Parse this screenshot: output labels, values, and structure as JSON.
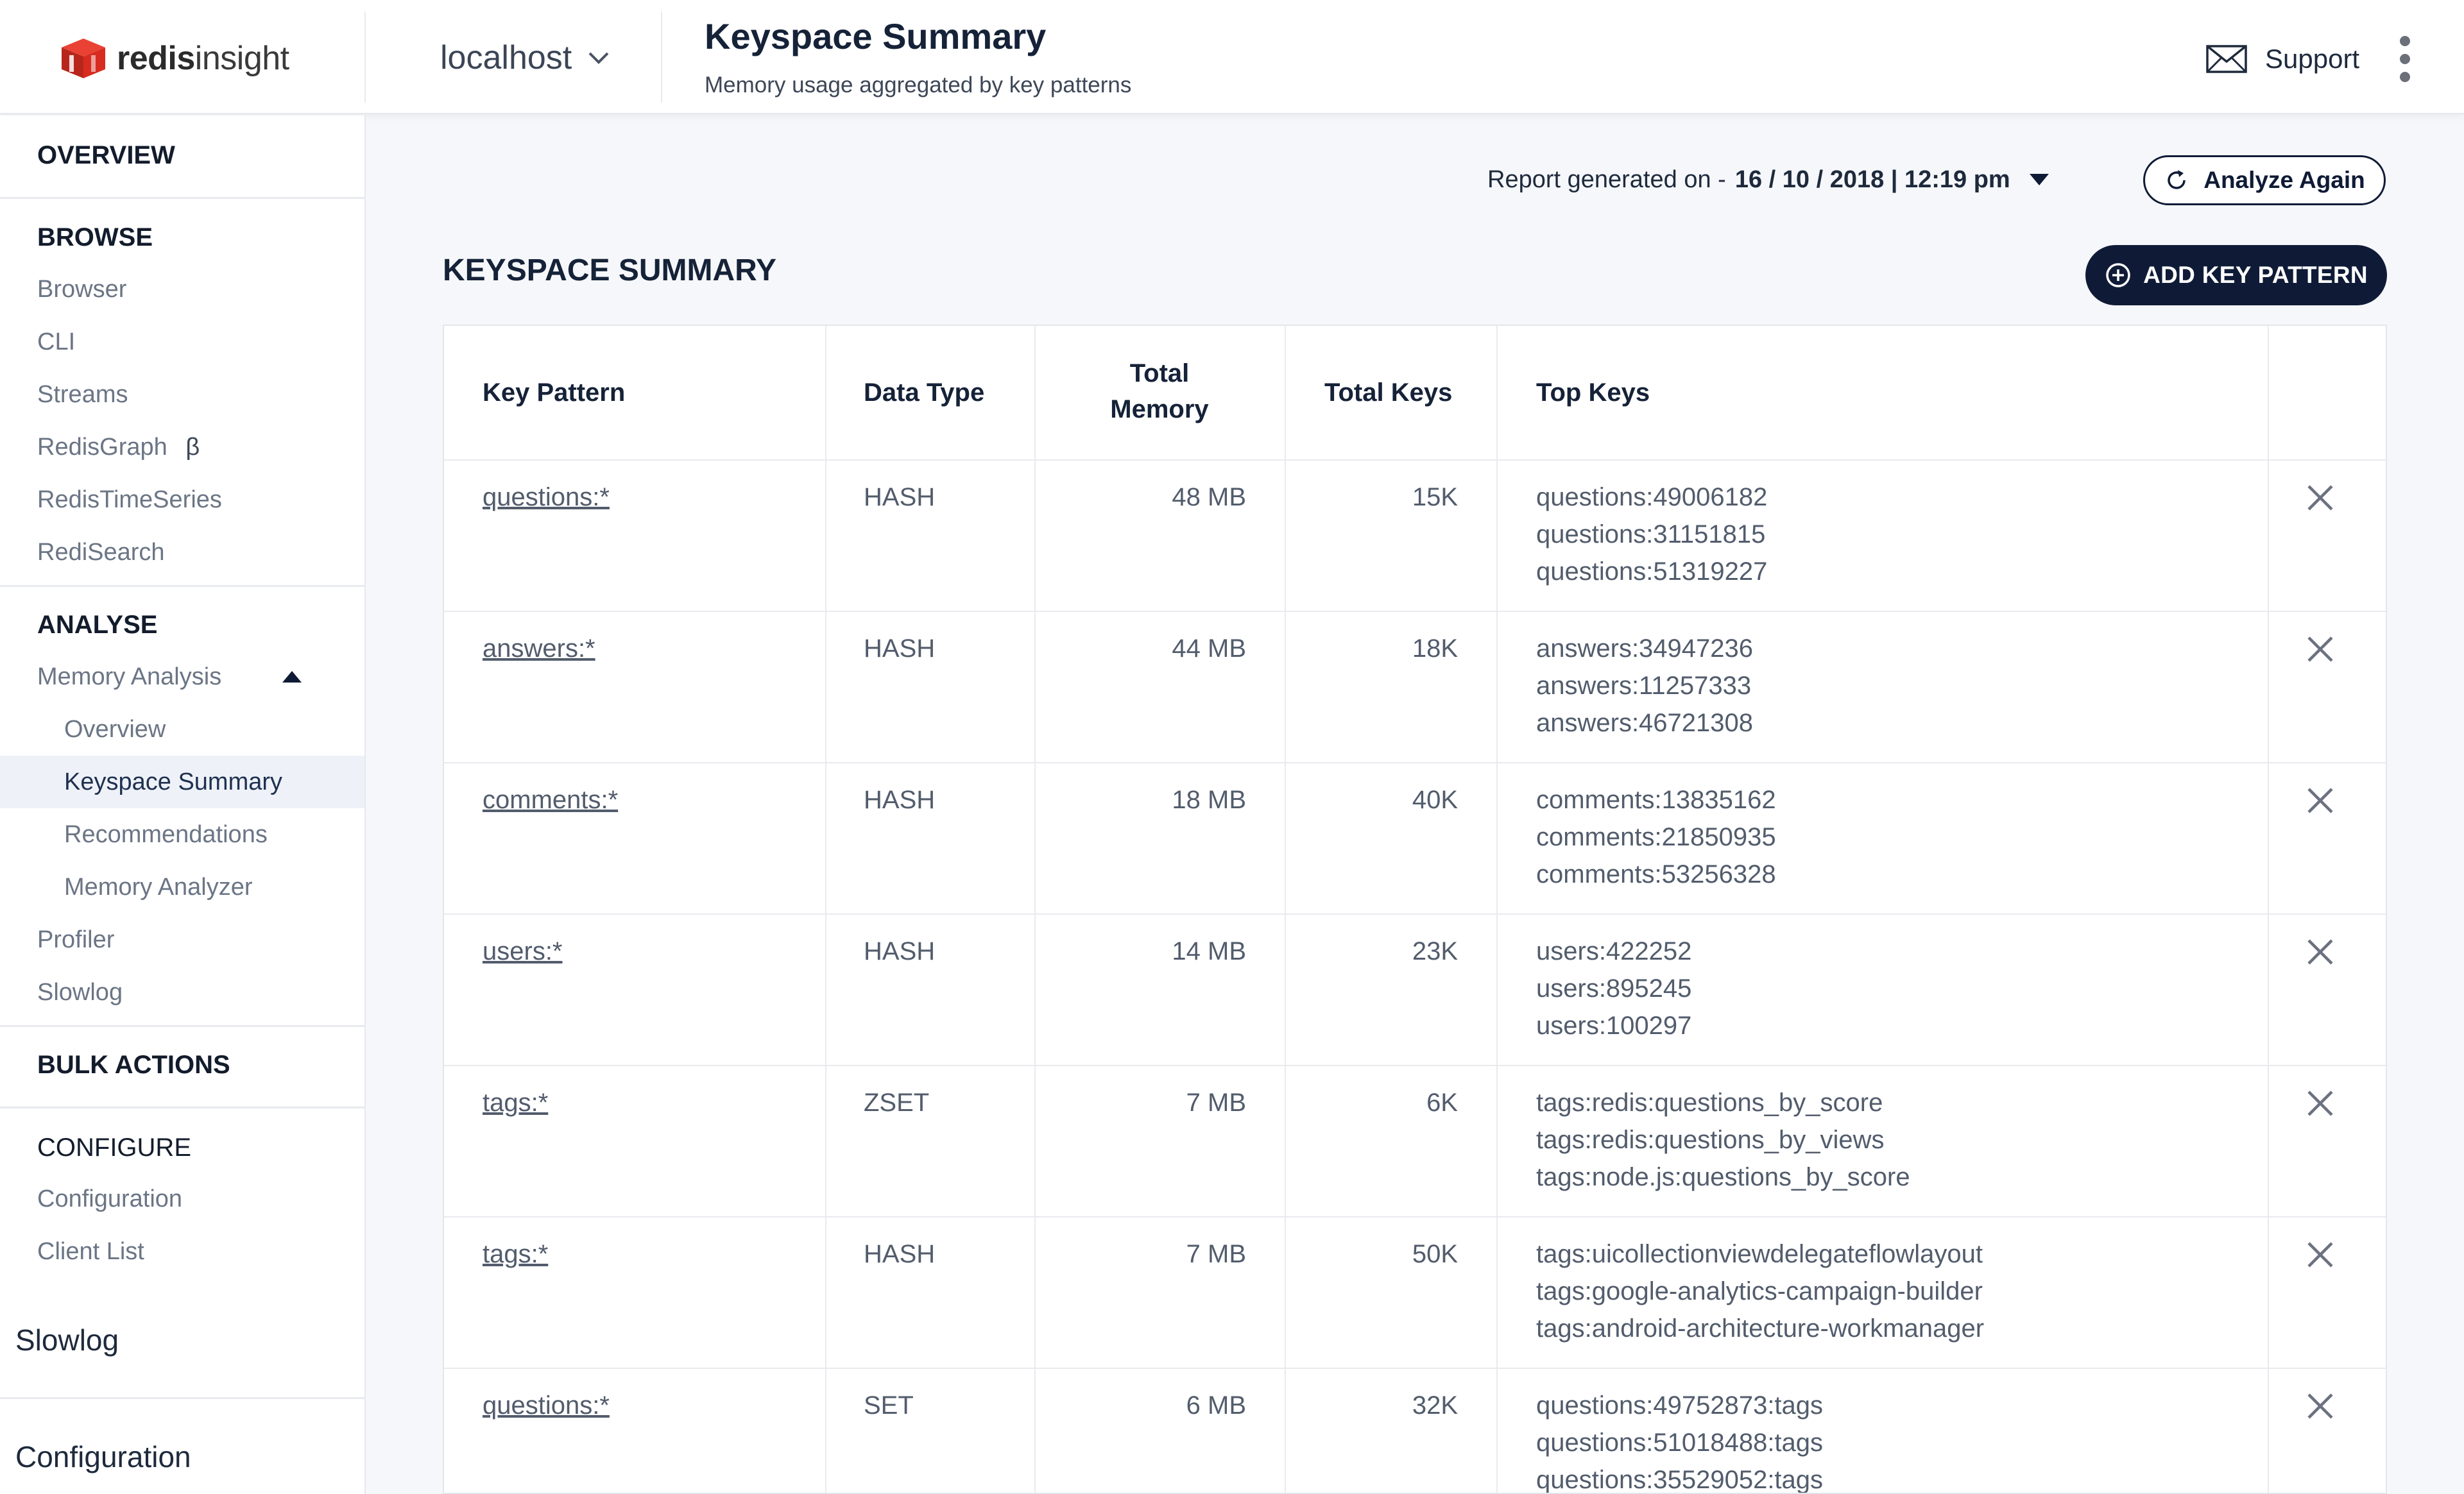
{
  "header": {
    "logo_bold": "redis",
    "logo_light": "insight",
    "db_name": "localhost",
    "title": "Keyspace Summary",
    "subtitle": "Memory usage aggregated by key patterns",
    "support_label": "Support"
  },
  "sidebar": {
    "overview": "OVERVIEW",
    "browse": "BROWSE",
    "browse_items": [
      "Browser",
      "CLI",
      "Streams",
      "RedisGraph",
      "RedisTimeSeries",
      "RediSearch"
    ],
    "beta_mark": "β",
    "analyse": "ANALYSE",
    "memory_analysis": "Memory Analysis",
    "memory_sub": [
      "Overview",
      "Keyspace Summary",
      "Recommendations",
      "Memory Analyzer"
    ],
    "analyse_items": [
      "Profiler",
      "Slowlog"
    ],
    "bulk_actions": "BULK ACTIONS",
    "configure": "CONFIGURE",
    "configure_items": [
      "Configuration",
      "Client List"
    ],
    "extra": [
      "Slowlog",
      "Configuration"
    ]
  },
  "main": {
    "report_prefix": "Report generated on -",
    "report_date": "16 / 10 / 2018 | 12:19 pm",
    "analyze_label": "Analyze Again",
    "section_title": "KEYSPACE SUMMARY",
    "add_label": "ADD KEY PATTERN"
  },
  "table": {
    "headers": {
      "key_pattern": "Key Pattern",
      "data_type": "Data Type",
      "total_memory_1": "Total",
      "total_memory_2": "Memory",
      "total_keys": "Total Keys",
      "top_keys": "Top Keys"
    },
    "rows": [
      {
        "pattern": "questions:*",
        "type": "HASH",
        "memory": "48 MB",
        "keys": "15K",
        "top": [
          "questions:49006182",
          "questions:31151815",
          "questions:51319227"
        ]
      },
      {
        "pattern": "answers:*",
        "type": "HASH",
        "memory": "44 MB",
        "keys": "18K",
        "top": [
          "answers:34947236",
          "answers:11257333",
          "answers:46721308"
        ]
      },
      {
        "pattern": "comments:*",
        "type": "HASH",
        "memory": "18 MB",
        "keys": "40K",
        "top": [
          "comments:13835162",
          "comments:21850935",
          "comments:53256328"
        ]
      },
      {
        "pattern": "users:*",
        "type": "HASH",
        "memory": "14 MB",
        "keys": "23K",
        "top": [
          "users:422252",
          "users:895245",
          "users:100297"
        ]
      },
      {
        "pattern": "tags:*",
        "type": "ZSET",
        "memory": "7 MB",
        "keys": "6K",
        "top": [
          "tags:redis:questions_by_score",
          "tags:redis:questions_by_views",
          "tags:node.js:questions_by_score"
        ]
      },
      {
        "pattern": "tags:*",
        "type": "HASH",
        "memory": "7 MB",
        "keys": "50K",
        "top": [
          "tags:uicollectionviewdelegateflowlayout",
          "tags:google-analytics-campaign-builder",
          "tags:android-architecture-workmanager"
        ]
      },
      {
        "pattern": "questions:*",
        "type": "SET",
        "memory": "6 MB",
        "keys": "32K",
        "top": [
          "questions:49752873:tags",
          "questions:51018488:tags",
          "questions:35529052:tags"
        ]
      }
    ]
  },
  "colors": {
    "primary": "#0f1b36",
    "logo_red": "#d82c20",
    "active_bg": "#eef2f8"
  },
  "icons": [
    "redis-logo-icon",
    "chevron-down-icon",
    "mail-icon",
    "kebab-menu-icon",
    "refresh-icon",
    "plus-circle-icon",
    "close-icon",
    "caret-up-icon",
    "caret-down-icon"
  ]
}
